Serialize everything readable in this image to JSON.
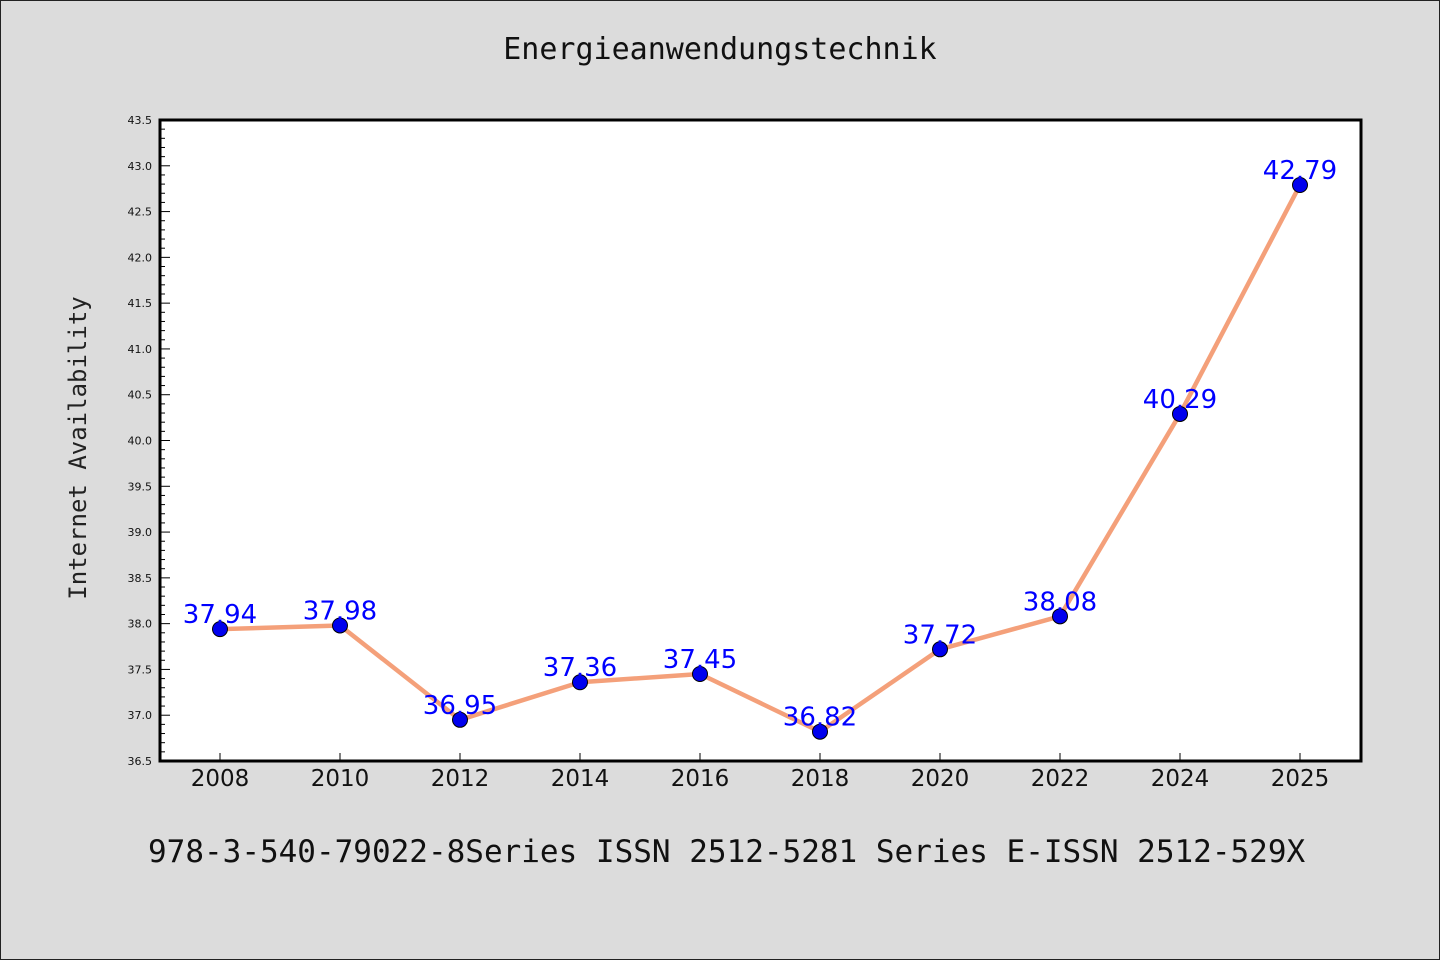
{
  "chart_data": {
    "type": "line",
    "title": "Energieanwendungstechnik",
    "xlabel": "",
    "ylabel": "Internet Availability",
    "categories": [
      "2008",
      "2010",
      "2012",
      "2014",
      "2016",
      "2018",
      "2020",
      "2022",
      "2024",
      "2025"
    ],
    "series": [
      {
        "values": [
          37.94,
          37.98,
          36.95,
          37.36,
          37.45,
          36.82,
          37.72,
          38.08,
          40.29,
          42.79
        ],
        "data_labels": [
          "37.94",
          "37.98",
          "36.95",
          "37.36",
          "37.45",
          "36.82",
          "37.72",
          "38.08",
          "40.29",
          "42.79"
        ],
        "line_color": "#f4a07a",
        "marker_color": "#0000ee",
        "label_color": "#0000ff"
      }
    ],
    "ylim": [
      36.5,
      43.5
    ],
    "yticks": [
      "36.5",
      "37.0",
      "37.5",
      "38.0",
      "38.5",
      "39.0",
      "39.5",
      "40.0",
      "40.5",
      "41.0",
      "41.5",
      "42.0",
      "42.5",
      "43.0",
      "43.5"
    ],
    "grid": false,
    "legend": "none"
  },
  "footer": "978-3-540-79022-8Series ISSN 2512-5281 Series E-ISSN 2512-529X",
  "colors": {
    "background": "#dcdcdc",
    "plot_background": "#ffffff"
  }
}
